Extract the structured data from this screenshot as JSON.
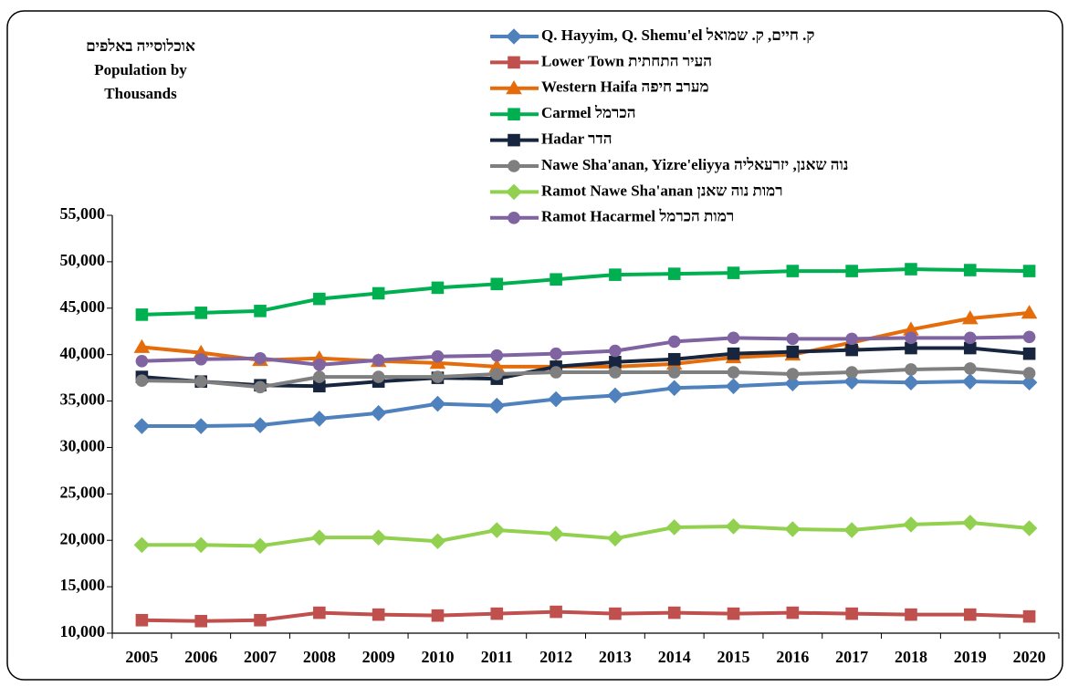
{
  "chart_data": {
    "type": "line",
    "title_lines": [
      "אוכלוסייה באלפים",
      "Population by",
      "Thousands"
    ],
    "categories": [
      "2005",
      "2006",
      "2007",
      "2008",
      "2009",
      "2010",
      "2011",
      "2012",
      "2013",
      "2014",
      "2015",
      "2016",
      "2017",
      "2018",
      "2019",
      "2020"
    ],
    "series": [
      {
        "name": "Q. Hayyim, Q. Shemu'el  ק. חיים, ק. שמואל",
        "color": "#4f81bd",
        "marker": "diamond",
        "values": [
          32300,
          32300,
          32400,
          33100,
          33700,
          34700,
          34500,
          35200,
          35600,
          36400,
          36600,
          36900,
          37100,
          37000,
          37100,
          37000
        ]
      },
      {
        "name": "Lower Town   העיר התחתית",
        "color": "#c0504d",
        "marker": "square",
        "values": [
          11400,
          11300,
          11400,
          12200,
          12000,
          11900,
          12100,
          12300,
          12100,
          12200,
          12100,
          12200,
          12100,
          12000,
          12000,
          11800
        ]
      },
      {
        "name": " Western Haifa  מערב חיפה",
        "color": "#e46c0a",
        "marker": "triangle",
        "values": [
          40800,
          40200,
          39400,
          39600,
          39300,
          39100,
          38700,
          38700,
          38700,
          39000,
          39700,
          40000,
          41300,
          42700,
          43900,
          44500
        ]
      },
      {
        "name": "Carmel  הכרמל",
        "color": "#00b050",
        "marker": "square",
        "values": [
          44300,
          44500,
          44700,
          46000,
          46600,
          47200,
          47600,
          48100,
          48600,
          48700,
          48800,
          49000,
          49000,
          49200,
          49100,
          49000
        ]
      },
      {
        "name": "Hadar  הדר",
        "color": "#17253f",
        "marker": "square",
        "values": [
          37600,
          37100,
          36700,
          36600,
          37100,
          37500,
          37400,
          38700,
          39200,
          39500,
          40100,
          40300,
          40500,
          40700,
          40700,
          40100
        ]
      },
      {
        "name": "Nawe Sha'anan, Yizre'eliyya  נוה שאנן, יזרעאליה",
        "color": "#7f7f7f",
        "marker": "circle",
        "values": [
          37200,
          37100,
          36500,
          37600,
          37600,
          37600,
          37900,
          38100,
          38100,
          38100,
          38100,
          37900,
          38100,
          38400,
          38500,
          38000
        ]
      },
      {
        "name": "Ramot Nawe Sha'anan  רמות נוה שאנן",
        "color": "#92d050",
        "marker": "diamond",
        "values": [
          19500,
          19500,
          19400,
          20300,
          20300,
          19900,
          21100,
          20700,
          20200,
          21400,
          21500,
          21200,
          21100,
          21700,
          21900,
          21300
        ]
      },
      {
        "name": "Ramot Hacarmel  רמות הכרמל",
        "color": "#8064a2",
        "marker": "circle",
        "values": [
          39300,
          39500,
          39600,
          38900,
          39400,
          39800,
          39900,
          40100,
          40400,
          41400,
          41800,
          41700,
          41700,
          41800,
          41800,
          41900
        ]
      }
    ],
    "ylim": [
      10000,
      55000
    ],
    "yticks": [
      {
        "value": 10000,
        "label": "10,000"
      },
      {
        "value": 15000,
        "label": "15,000"
      },
      {
        "value": 20000,
        "label": "20,000"
      },
      {
        "value": 25000,
        "label": "25,000"
      },
      {
        "value": 30000,
        "label": "30,000"
      },
      {
        "value": 35000,
        "label": "35,000"
      },
      {
        "value": 40000,
        "label": "40,000"
      },
      {
        "value": 45000,
        "label": "45,000"
      },
      {
        "value": 50000,
        "label": "50,000"
      },
      {
        "value": 55000,
        "label": "55,000"
      }
    ],
    "grid": false,
    "legend": "top-right"
  }
}
